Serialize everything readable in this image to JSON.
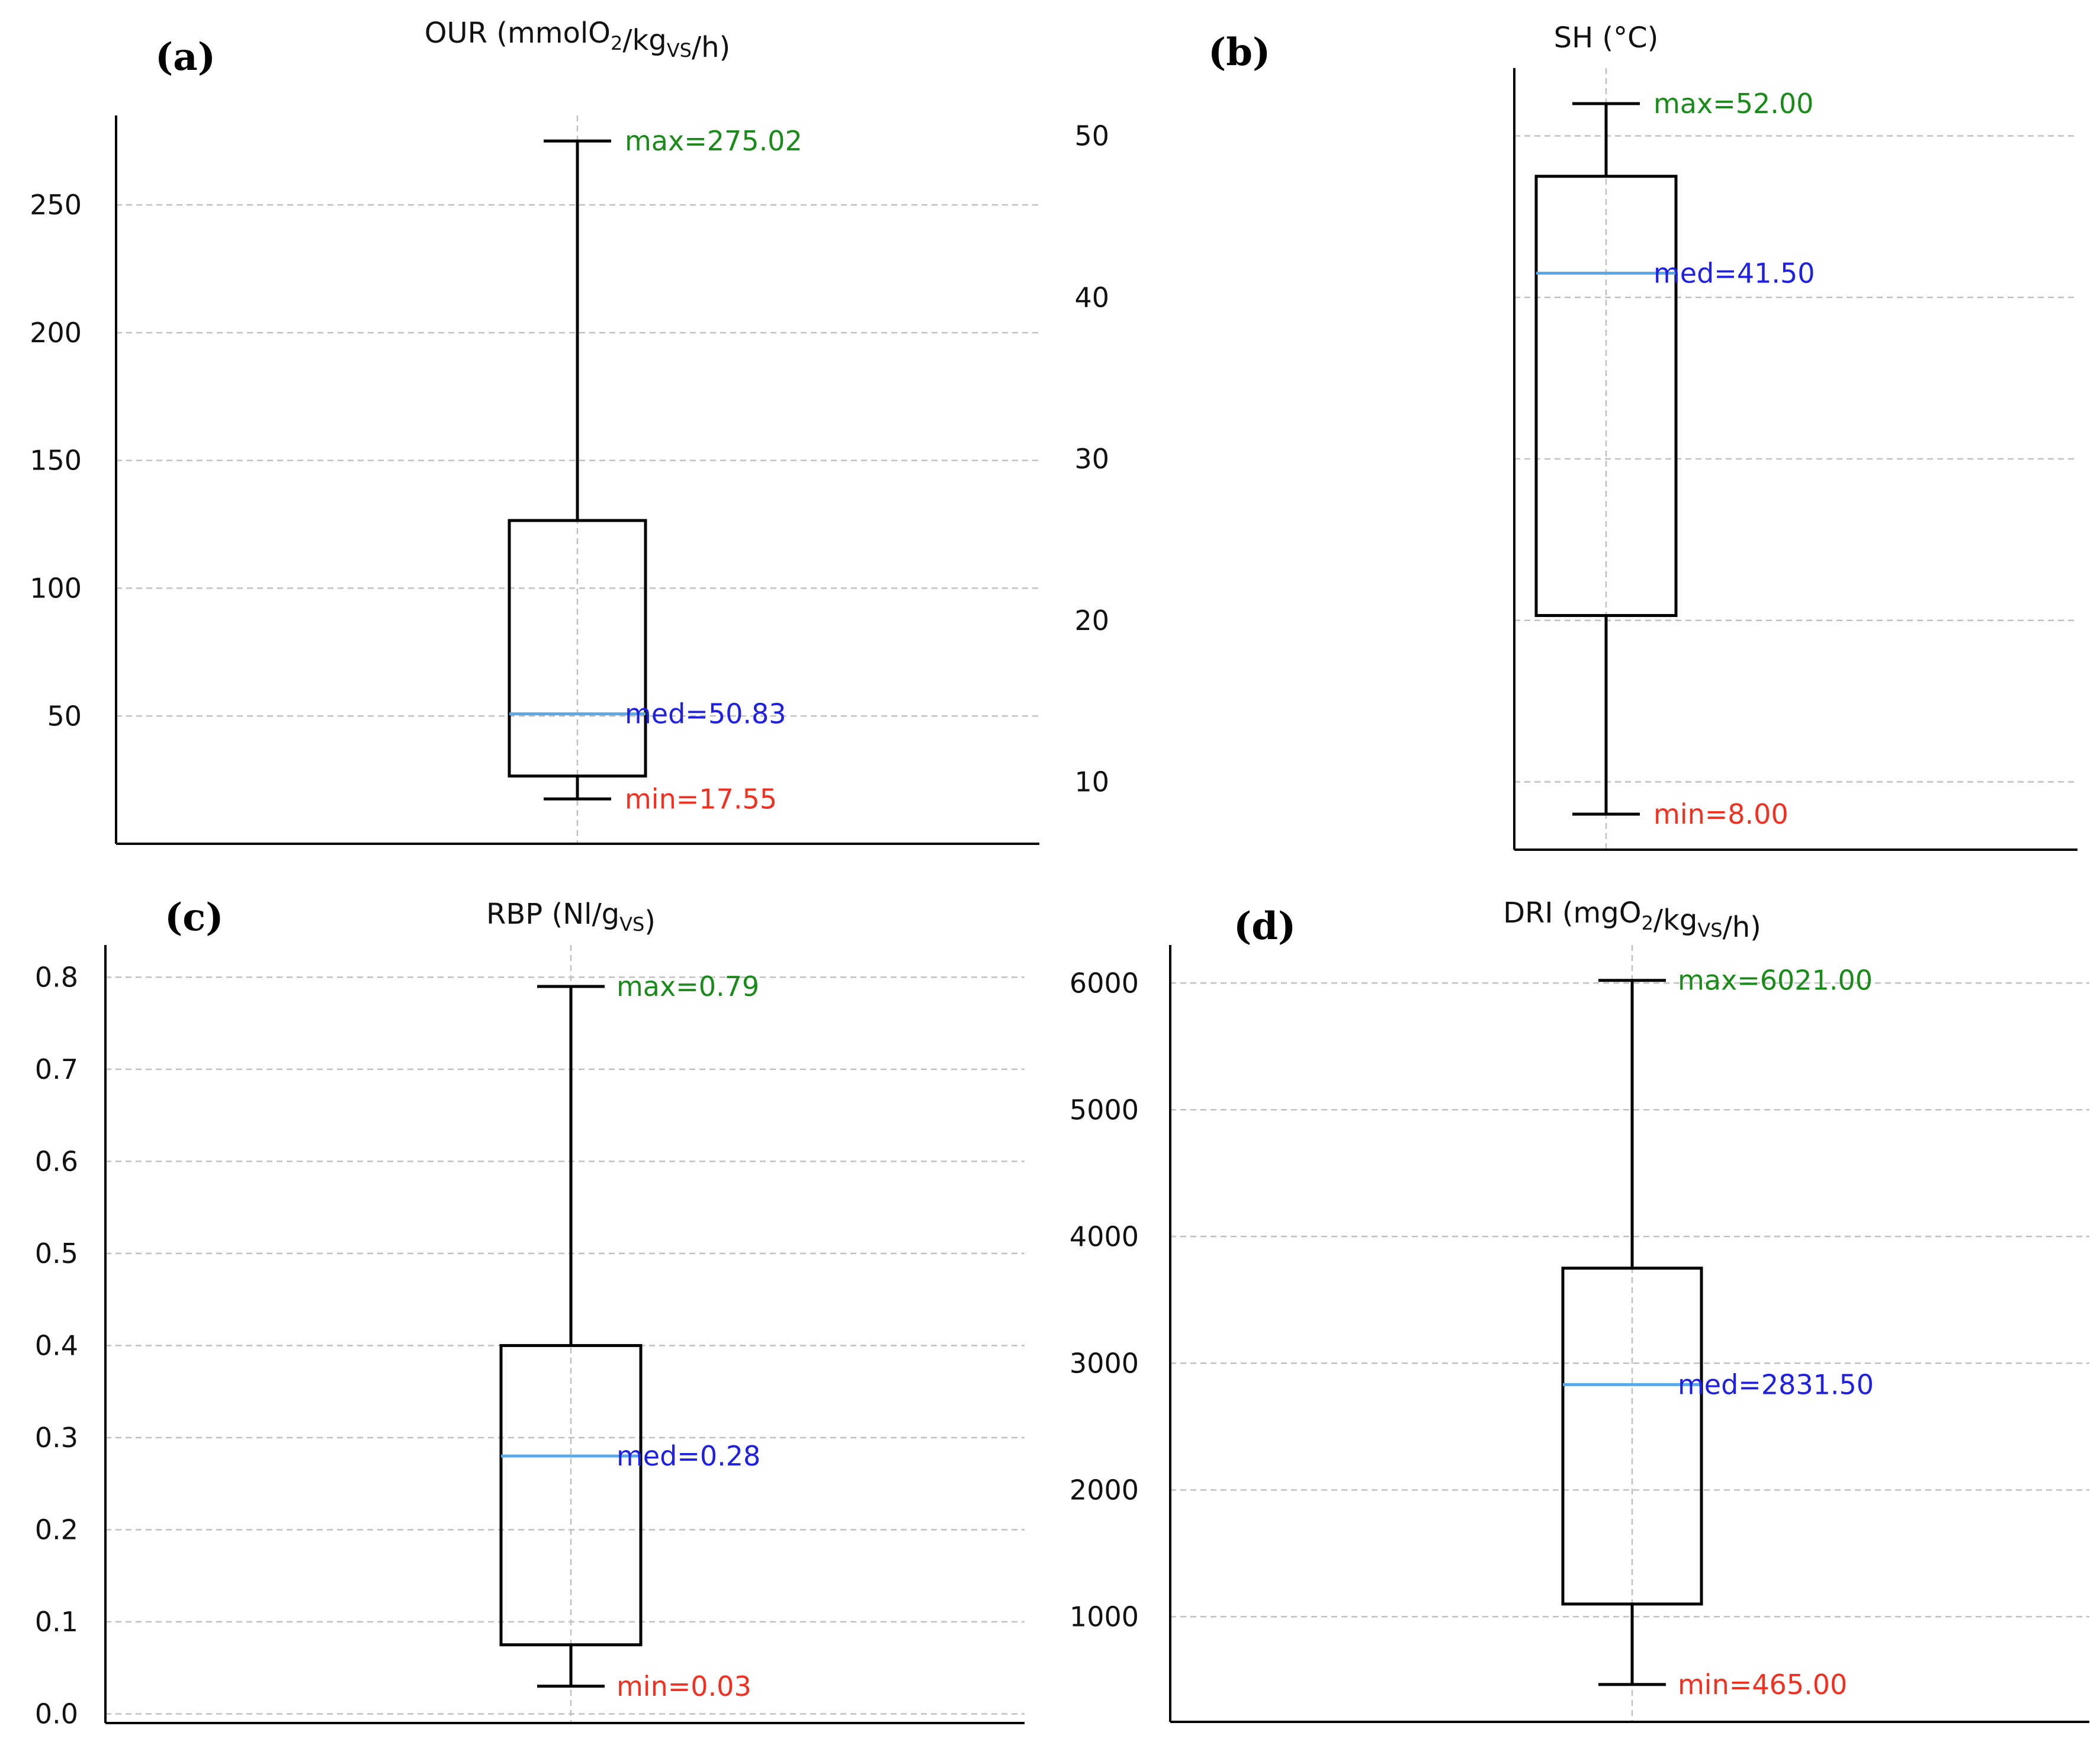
{
  "colors": {
    "axis": "#000000",
    "grid": "#c0c0c0",
    "box": "#000000",
    "median_line": "#5aa9e6",
    "max_label": "#1a8a1a",
    "med_label": "#2020e0",
    "min_label": "#f03020"
  },
  "chart_data": [
    {
      "type": "box",
      "panel_label": "(a)",
      "title": {
        "main": "OUR (mmolO",
        "sub1": "2",
        "mid": "/kg",
        "sub2": "VS",
        "tail": "/h)"
      },
      "ylim": [
        0,
        285
      ],
      "yticks": [
        50,
        100,
        150,
        200,
        250
      ],
      "ytick_labels": [
        "50",
        "100",
        "150",
        "200",
        "250"
      ],
      "grid": true,
      "stats": {
        "min": 17.55,
        "q1": 26.5,
        "median": 50.83,
        "q3": 126.5,
        "max": 275.02
      },
      "annotations": {
        "max": "max=275.02",
        "median": "med=50.83",
        "min": "min=17.55"
      }
    },
    {
      "type": "box",
      "panel_label": "(b)",
      "title": {
        "main": "SH (°C)",
        "sub1": "",
        "mid": "",
        "sub2": "",
        "tail": ""
      },
      "ylim": [
        5.8,
        54.2
      ],
      "yticks": [
        10,
        20,
        30,
        40,
        50
      ],
      "ytick_labels": [
        "10",
        "20",
        "30",
        "40",
        "50"
      ],
      "grid": true,
      "stats": {
        "min": 8.0,
        "q1": 20.3,
        "median": 41.5,
        "q3": 47.5,
        "max": 52.0
      },
      "annotations": {
        "max": "max=52.00",
        "median": "med=41.50",
        "min": "min=8.00"
      }
    },
    {
      "type": "box",
      "panel_label": "(c)",
      "title": {
        "main": "RBP (Nl/g",
        "sub1": "",
        "mid": "",
        "sub2": "VS",
        "tail": ")"
      },
      "ylim": [
        -0.01,
        0.835
      ],
      "yticks": [
        0.0,
        0.1,
        0.2,
        0.3,
        0.4,
        0.5,
        0.6,
        0.7,
        0.8
      ],
      "ytick_labels": [
        "0.0",
        "0.1",
        "0.2",
        "0.3",
        "0.4",
        "0.5",
        "0.6",
        "0.7",
        "0.8"
      ],
      "grid": true,
      "stats": {
        "min": 0.03,
        "q1": 0.075,
        "median": 0.28,
        "q3": 0.4,
        "max": 0.79
      },
      "annotations": {
        "max": "max=0.79",
        "median": "med=0.28",
        "min": "min=0.03"
      }
    },
    {
      "type": "box",
      "panel_label": "(d)",
      "title": {
        "main": "DRI (mgO",
        "sub1": "2",
        "mid": "/kg",
        "sub2": "VS",
        "tail": "/h)"
      },
      "ylim": [
        170,
        6300
      ],
      "yticks": [
        1000,
        2000,
        3000,
        4000,
        5000,
        6000
      ],
      "ytick_labels": [
        "1000",
        "2000",
        "3000",
        "4000",
        "5000",
        "6000"
      ],
      "grid": true,
      "stats": {
        "min": 465.0,
        "q1": 1100,
        "median": 2831.5,
        "q3": 3750,
        "max": 6021.0
      },
      "annotations": {
        "max": "max=6021.00",
        "median": "med=2831.50",
        "min": "min=465.00"
      }
    }
  ]
}
